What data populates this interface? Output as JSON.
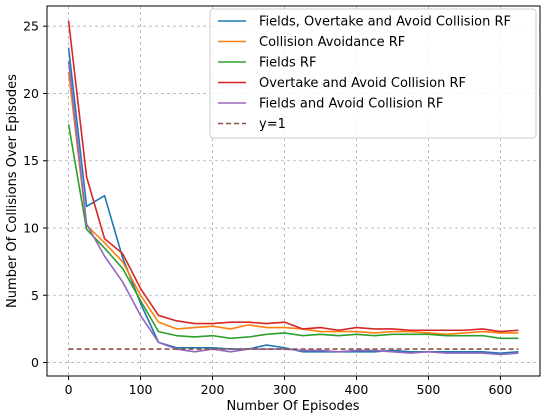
{
  "chart_data": {
    "type": "line",
    "title": "",
    "xlabel": "Number Of Episodes",
    "ylabel": "Number Of Collisions Over Episodes",
    "xlim": [
      -30,
      655
    ],
    "ylim": [
      -1,
      26.5
    ],
    "xticks": [
      0,
      100,
      200,
      300,
      400,
      500,
      600
    ],
    "yticks": [
      0,
      5,
      10,
      15,
      20,
      25
    ],
    "grid": true,
    "legend_position": "top-right",
    "x": [
      0,
      25,
      50,
      75,
      100,
      125,
      150,
      175,
      200,
      225,
      250,
      275,
      300,
      325,
      350,
      375,
      400,
      425,
      450,
      475,
      500,
      525,
      550,
      575,
      600,
      625
    ],
    "series": [
      {
        "name": "Fields, Overtake and Avoid Collision RF",
        "color": "#1f77b4",
        "dashed": false,
        "values": [
          23.4,
          11.6,
          12.4,
          7.8,
          4.4,
          1.5,
          1.1,
          1.1,
          1.1,
          1.0,
          1.0,
          1.3,
          1.1,
          0.8,
          0.8,
          0.8,
          0.8,
          0.8,
          0.9,
          0.8,
          0.8,
          0.8,
          0.8,
          0.8,
          0.7,
          0.8
        ]
      },
      {
        "name": "Collision Avoidance RF",
        "color": "#ff7f0e",
        "dashed": false,
        "values": [
          21.6,
          10.2,
          8.9,
          7.5,
          5.0,
          3.0,
          2.5,
          2.6,
          2.7,
          2.5,
          2.8,
          2.6,
          2.6,
          2.5,
          2.3,
          2.3,
          2.3,
          2.2,
          2.3,
          2.3,
          2.2,
          2.1,
          2.2,
          2.3,
          2.2,
          2.2
        ]
      },
      {
        "name": "Fields RF",
        "color": "#2ca02c",
        "dashed": false,
        "values": [
          17.7,
          9.9,
          8.5,
          7.0,
          4.6,
          2.3,
          2.0,
          1.9,
          2.0,
          1.8,
          1.9,
          2.1,
          2.2,
          2.0,
          2.1,
          2.0,
          2.1,
          2.0,
          2.1,
          2.1,
          2.1,
          2.0,
          2.0,
          2.0,
          1.8,
          1.8
        ]
      },
      {
        "name": "Overtake and Avoid Collision RF",
        "color": "#d62728",
        "dashed": false,
        "values": [
          25.4,
          13.8,
          9.2,
          8.1,
          5.5,
          3.5,
          3.1,
          2.9,
          2.9,
          3.0,
          3.0,
          2.9,
          3.0,
          2.5,
          2.6,
          2.4,
          2.6,
          2.5,
          2.5,
          2.4,
          2.4,
          2.4,
          2.4,
          2.5,
          2.3,
          2.4
        ]
      },
      {
        "name": "Fields and Avoid Collision RF",
        "color": "#9467bd",
        "dashed": false,
        "values": [
          22.4,
          10.3,
          7.9,
          6.0,
          3.5,
          1.5,
          1.0,
          0.8,
          1.0,
          0.8,
          1.0,
          1.0,
          1.0,
          0.9,
          0.9,
          0.8,
          0.9,
          0.9,
          0.8,
          0.7,
          0.8,
          0.7,
          0.7,
          0.7,
          0.6,
          0.7
        ]
      },
      {
        "name": "y=1",
        "color": "#8c564b",
        "dashed": true,
        "values": [
          1,
          1,
          1,
          1,
          1,
          1,
          1,
          1,
          1,
          1,
          1,
          1,
          1,
          1,
          1,
          1,
          1,
          1,
          1,
          1,
          1,
          1,
          1,
          1,
          1,
          1
        ]
      }
    ]
  }
}
